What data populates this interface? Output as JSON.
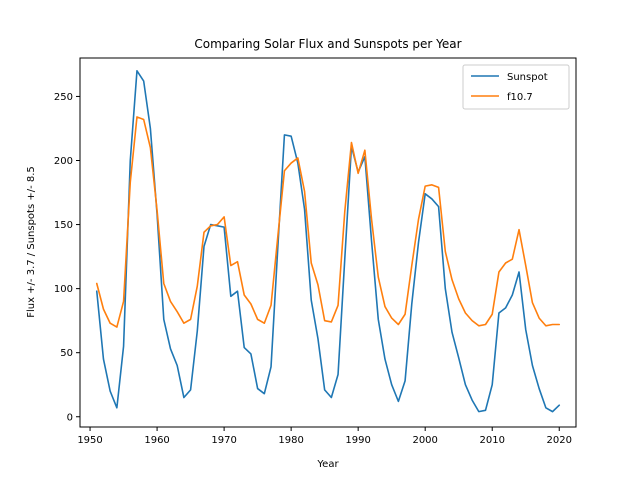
{
  "chart_data": {
    "type": "line",
    "title": "Comparing Solar Flux and Sunspots per Year",
    "xlabel": "Year",
    "ylabel": "Flux +/- 3.7 / Sunspots +/- 8.5",
    "xlim": [
      1948.5,
      2022.5
    ],
    "ylim": [
      -8,
      280
    ],
    "xticks": [
      1950,
      1960,
      1970,
      1980,
      1990,
      2000,
      2010,
      2020
    ],
    "yticks": [
      0,
      50,
      100,
      150,
      200,
      250
    ],
    "grid": false,
    "legend_position": "top-right",
    "x": [
      1951,
      1952,
      1953,
      1954,
      1955,
      1956,
      1957,
      1958,
      1959,
      1960,
      1961,
      1962,
      1963,
      1964,
      1965,
      1966,
      1967,
      1968,
      1969,
      1970,
      1971,
      1972,
      1973,
      1974,
      1975,
      1976,
      1977,
      1978,
      1979,
      1980,
      1981,
      1982,
      1983,
      1984,
      1985,
      1986,
      1987,
      1988,
      1989,
      1990,
      1991,
      1992,
      1993,
      1994,
      1995,
      1996,
      1997,
      1998,
      1999,
      2000,
      2001,
      2002,
      2003,
      2004,
      2005,
      2006,
      2007,
      2008,
      2009,
      2010,
      2011,
      2012,
      2013,
      2014,
      2015,
      2016,
      2017,
      2018,
      2019,
      2020
    ],
    "series": [
      {
        "name": "Sunspot",
        "color": "#1f77b4",
        "values": [
          98,
          45,
          20,
          7,
          55,
          200,
          270,
          262,
          225,
          158,
          76,
          53,
          40,
          15,
          21,
          67,
          133,
          150,
          149,
          148,
          94,
          98,
          54,
          49,
          22,
          18,
          39,
          131,
          220,
          219,
          198,
          162,
          91,
          61,
          21,
          15,
          33,
          123,
          211,
          191,
          203,
          137,
          76,
          45,
          25,
          12,
          28,
          88,
          136,
          174,
          170,
          164,
          100,
          66,
          46,
          25,
          13,
          4,
          5,
          25,
          81,
          85,
          95,
          113,
          68,
          40,
          22,
          7,
          4,
          9
        ]
      },
      {
        "name": "f10.7",
        "color": "#ff7f0e",
        "values": [
          104,
          84,
          73,
          70,
          90,
          183,
          234,
          232,
          210,
          161,
          104,
          90,
          82,
          73,
          76,
          102,
          144,
          149,
          150,
          156,
          118,
          121,
          95,
          88,
          76,
          73,
          87,
          140,
          192,
          198,
          202,
          176,
          120,
          103,
          75,
          74,
          87,
          160,
          214,
          190,
          208,
          154,
          109,
          86,
          77,
          72,
          80,
          118,
          154,
          180,
          181,
          179,
          129,
          107,
          92,
          81,
          75,
          71,
          72,
          80,
          113,
          120,
          123,
          146,
          118,
          89,
          77,
          71,
          72,
          72
        ]
      }
    ]
  }
}
